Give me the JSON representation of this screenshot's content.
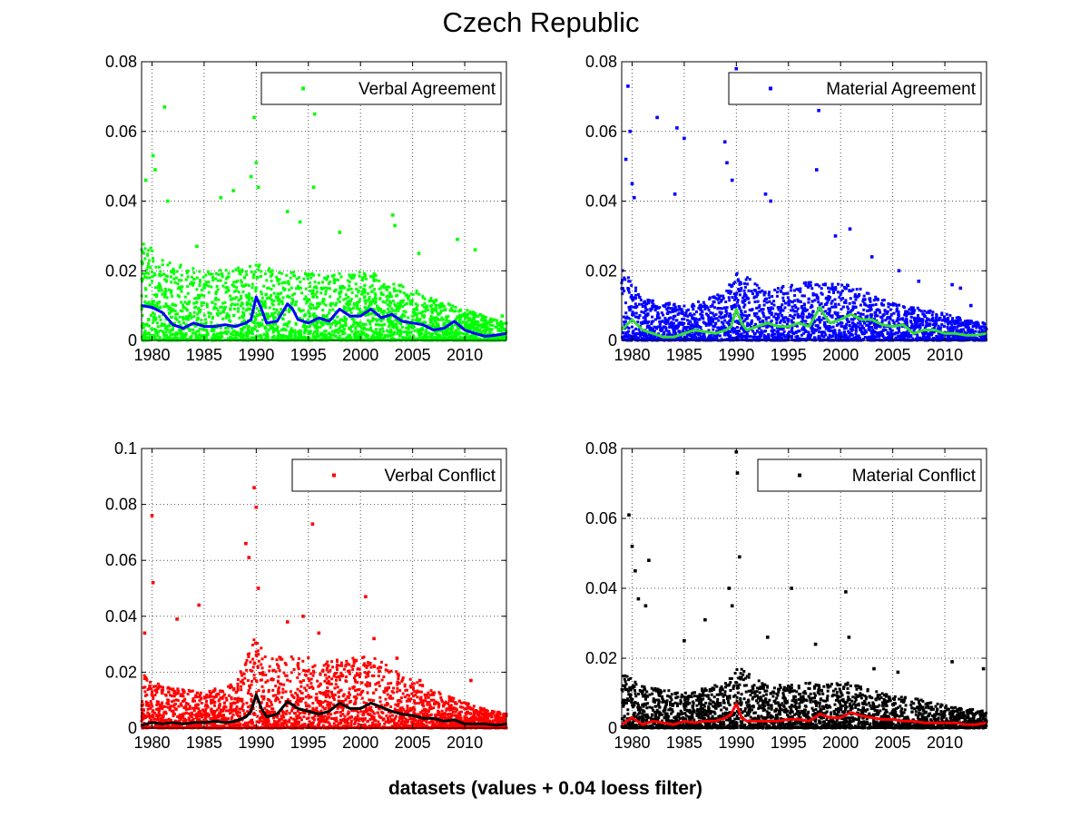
{
  "figure": {
    "title": "Czech Republic",
    "xlabel": "datasets (values + 0.04 loess filter)"
  },
  "chart_data": [
    {
      "type": "scatter",
      "legend": "Verbal Agreement",
      "legend_position": "top-right",
      "grid": true,
      "xlim": [
        1979,
        2014
      ],
      "ylim": [
        0,
        0.08
      ],
      "xticks": [
        1980,
        1985,
        1990,
        1995,
        2000,
        2005,
        2010
      ],
      "yticks": [
        "0",
        "0.02",
        "0.04",
        "0.06",
        "0.08"
      ],
      "point_color": "#00ff00",
      "line_color": "#0000ff",
      "scatter": {
        "envelope": [
          [
            1979,
            0.03
          ],
          [
            1981,
            0.023
          ],
          [
            1985,
            0.02
          ],
          [
            1989,
            0.021
          ],
          [
            1990,
            0.022
          ],
          [
            1993,
            0.02
          ],
          [
            1997,
            0.019
          ],
          [
            2001,
            0.02
          ],
          [
            2004,
            0.016
          ],
          [
            2008,
            0.011
          ],
          [
            2011,
            0.008
          ],
          [
            2014,
            0.005
          ]
        ],
        "outliers": [
          [
            1979.4,
            0.046
          ],
          [
            1980.1,
            0.053
          ],
          [
            1980.3,
            0.049
          ],
          [
            1981.2,
            0.067
          ],
          [
            1981.5,
            0.04
          ],
          [
            1984.3,
            0.027
          ],
          [
            1986.6,
            0.041
          ],
          [
            1987.8,
            0.043
          ],
          [
            1989.5,
            0.047
          ],
          [
            1989.8,
            0.064
          ],
          [
            1990.0,
            0.051
          ],
          [
            1990.2,
            0.044
          ],
          [
            1993.0,
            0.037
          ],
          [
            1994.2,
            0.034
          ],
          [
            1995.6,
            0.065
          ],
          [
            1995.5,
            0.044
          ],
          [
            1998.0,
            0.031
          ],
          [
            2003.1,
            0.036
          ],
          [
            2003.3,
            0.033
          ],
          [
            2005.6,
            0.025
          ],
          [
            2009.3,
            0.029
          ],
          [
            2011.0,
            0.026
          ],
          [
            2013.6,
            0.007
          ]
        ]
      },
      "trend": {
        "x": [
          1979,
          1980,
          1981,
          1982,
          1983,
          1984,
          1985,
          1986,
          1987,
          1988,
          1989,
          1989.5,
          1990,
          1990.5,
          1991,
          1992,
          1993,
          1993.5,
          1994,
          1995,
          1996,
          1997,
          1998,
          1999,
          2000,
          2001,
          2002,
          2003,
          2004,
          2005,
          2006,
          2007,
          2008,
          2009,
          2010,
          2011,
          2012,
          2013,
          2014
        ],
        "y": [
          0.01,
          0.0095,
          0.008,
          0.0045,
          0.0035,
          0.005,
          0.004,
          0.004,
          0.0045,
          0.004,
          0.005,
          0.006,
          0.0125,
          0.009,
          0.005,
          0.0055,
          0.0105,
          0.009,
          0.006,
          0.005,
          0.0065,
          0.0055,
          0.009,
          0.007,
          0.007,
          0.009,
          0.0065,
          0.0075,
          0.0055,
          0.005,
          0.0045,
          0.003,
          0.0035,
          0.0055,
          0.003,
          0.002,
          0.0012,
          0.0015,
          0.002
        ]
      }
    },
    {
      "type": "scatter",
      "legend": "Material Agreement",
      "legend_position": "top-right",
      "grid": true,
      "xlim": [
        1979,
        2014
      ],
      "ylim": [
        0,
        0.08
      ],
      "xticks": [
        1980,
        1985,
        1990,
        1995,
        2000,
        2005,
        2010
      ],
      "yticks": [
        "0",
        "0.02",
        "0.04",
        "0.06",
        "0.08"
      ],
      "point_color": "#0000ff",
      "line_color": "#33dd33",
      "scatter": {
        "envelope": [
          [
            1979,
            0.022
          ],
          [
            1981,
            0.012
          ],
          [
            1985,
            0.01
          ],
          [
            1989,
            0.014
          ],
          [
            1990,
            0.02
          ],
          [
            1993,
            0.015
          ],
          [
            1997,
            0.017
          ],
          [
            2001,
            0.016
          ],
          [
            2004,
            0.012
          ],
          [
            2008,
            0.009
          ],
          [
            2011,
            0.007
          ],
          [
            2014,
            0.005
          ]
        ],
        "outliers": [
          [
            1979.6,
            0.073
          ],
          [
            1979.8,
            0.06
          ],
          [
            1979.4,
            0.052
          ],
          [
            1980.0,
            0.045
          ],
          [
            1980.2,
            0.041
          ],
          [
            1982.4,
            0.064
          ],
          [
            1984.3,
            0.061
          ],
          [
            1985.0,
            0.058
          ],
          [
            1984.1,
            0.042
          ],
          [
            1988.9,
            0.057
          ],
          [
            1989.1,
            0.051
          ],
          [
            1990.0,
            0.078
          ],
          [
            1989.6,
            0.046
          ],
          [
            1992.8,
            0.042
          ],
          [
            1993.3,
            0.04
          ],
          [
            1997.9,
            0.066
          ],
          [
            1997.7,
            0.049
          ],
          [
            2000.9,
            0.032
          ],
          [
            1999.5,
            0.03
          ],
          [
            2003.0,
            0.024
          ],
          [
            2005.6,
            0.02
          ],
          [
            2007.5,
            0.017
          ],
          [
            2010.7,
            0.016
          ],
          [
            2011.5,
            0.015
          ],
          [
            2012.5,
            0.01
          ]
        ]
      },
      "trend": {
        "x": [
          1979,
          1980,
          1981,
          1982,
          1983,
          1984,
          1985,
          1986,
          1987,
          1988,
          1989,
          1989.5,
          1990,
          1990.5,
          1991,
          1992,
          1993,
          1994,
          1995,
          1996,
          1997,
          1998,
          1998.5,
          1999,
          2000,
          2001,
          2002,
          2003,
          2004,
          2005,
          2006,
          2007,
          2008,
          2009,
          2010,
          2011,
          2012,
          2013,
          2014
        ],
        "y": [
          0.003,
          0.006,
          0.003,
          0.002,
          0.001,
          0.001,
          0.002,
          0.003,
          0.0025,
          0.002,
          0.003,
          0.004,
          0.009,
          0.005,
          0.003,
          0.004,
          0.005,
          0.004,
          0.004,
          0.005,
          0.004,
          0.0095,
          0.007,
          0.005,
          0.006,
          0.0075,
          0.006,
          0.006,
          0.0045,
          0.004,
          0.0045,
          0.002,
          0.003,
          0.003,
          0.002,
          0.002,
          0.0015,
          0.0015,
          0.002
        ]
      }
    },
    {
      "type": "scatter",
      "legend": "Verbal Conflict",
      "legend_position": "top-right",
      "grid": true,
      "xlim": [
        1979,
        2014
      ],
      "ylim": [
        0,
        0.1
      ],
      "xticks": [
        1980,
        1985,
        1990,
        1995,
        2000,
        2005,
        2010
      ],
      "yticks": [
        "0",
        "0.02",
        "0.04",
        "0.06",
        "0.08",
        "0.1"
      ],
      "point_color": "#ff0000",
      "line_color": "#000000",
      "scatter": {
        "envelope": [
          [
            1979,
            0.02
          ],
          [
            1981,
            0.015
          ],
          [
            1985,
            0.013
          ],
          [
            1988,
            0.016
          ],
          [
            1989.5,
            0.03
          ],
          [
            1990,
            0.035
          ],
          [
            1991,
            0.024
          ],
          [
            1993,
            0.027
          ],
          [
            1997,
            0.024
          ],
          [
            2001,
            0.026
          ],
          [
            2004,
            0.019
          ],
          [
            2008,
            0.012
          ],
          [
            2011,
            0.008
          ],
          [
            2014,
            0.005
          ]
        ],
        "outliers": [
          [
            1979.3,
            0.034
          ],
          [
            1980.0,
            0.076
          ],
          [
            1980.1,
            0.052
          ],
          [
            1982.4,
            0.039
          ],
          [
            1984.5,
            0.044
          ],
          [
            1989.0,
            0.066
          ],
          [
            1989.3,
            0.061
          ],
          [
            1989.8,
            0.086
          ],
          [
            1990.0,
            0.079
          ],
          [
            1990.2,
            0.05
          ],
          [
            1993.0,
            0.038
          ],
          [
            1994.5,
            0.04
          ],
          [
            1995.4,
            0.073
          ],
          [
            1996.0,
            0.034
          ],
          [
            2000.5,
            0.047
          ],
          [
            2001.3,
            0.032
          ],
          [
            2003.5,
            0.025
          ],
          [
            2005.7,
            0.017
          ],
          [
            2010.6,
            0.017
          ],
          [
            2013.8,
            0.005
          ]
        ]
      },
      "trend": {
        "x": [
          1979,
          1980,
          1981,
          1982,
          1983,
          1984,
          1985,
          1986,
          1987,
          1988,
          1989,
          1989.5,
          1990,
          1990.5,
          1991,
          1992,
          1993,
          1994,
          1995,
          1996,
          1997,
          1998,
          1999,
          2000,
          2001,
          2002,
          2003,
          2004,
          2005,
          2006,
          2007,
          2008,
          2009,
          2010,
          2011,
          2012,
          2013,
          2014
        ],
        "y": [
          0.001,
          0.002,
          0.0015,
          0.002,
          0.0015,
          0.002,
          0.002,
          0.0025,
          0.002,
          0.0025,
          0.004,
          0.006,
          0.012,
          0.007,
          0.004,
          0.005,
          0.0095,
          0.007,
          0.006,
          0.005,
          0.006,
          0.009,
          0.007,
          0.007,
          0.009,
          0.0075,
          0.006,
          0.005,
          0.0045,
          0.0035,
          0.0035,
          0.0025,
          0.003,
          0.0015,
          0.0015,
          0.0015,
          0.001,
          0.0015
        ]
      }
    },
    {
      "type": "scatter",
      "legend": "Material Conflict",
      "legend_position": "top-right",
      "grid": true,
      "xlim": [
        1979,
        2014
      ],
      "ylim": [
        0,
        0.08
      ],
      "xticks": [
        1980,
        1985,
        1990,
        1995,
        2000,
        2005,
        2010
      ],
      "yticks": [
        "0",
        "0.02",
        "0.04",
        "0.06",
        "0.08"
      ],
      "point_color": "#000000",
      "line_color": "#ff0000",
      "scatter": {
        "envelope": [
          [
            1979,
            0.016
          ],
          [
            1981,
            0.012
          ],
          [
            1985,
            0.01
          ],
          [
            1989,
            0.013
          ],
          [
            1990,
            0.018
          ],
          [
            1993,
            0.012
          ],
          [
            1997,
            0.013
          ],
          [
            2001,
            0.013
          ],
          [
            2004,
            0.01
          ],
          [
            2008,
            0.008
          ],
          [
            2011,
            0.006
          ],
          [
            2014,
            0.005
          ]
        ],
        "outliers": [
          [
            1979.7,
            0.061
          ],
          [
            1980.0,
            0.052
          ],
          [
            1980.3,
            0.045
          ],
          [
            1980.6,
            0.037
          ],
          [
            1981.3,
            0.035
          ],
          [
            1981.6,
            0.048
          ],
          [
            1985.0,
            0.025
          ],
          [
            1987.0,
            0.031
          ],
          [
            1989.3,
            0.04
          ],
          [
            1989.6,
            0.035
          ],
          [
            1990.0,
            0.079
          ],
          [
            1990.1,
            0.073
          ],
          [
            1990.3,
            0.049
          ],
          [
            1993.0,
            0.026
          ],
          [
            1995.3,
            0.04
          ],
          [
            1997.6,
            0.024
          ],
          [
            2000.5,
            0.039
          ],
          [
            2000.8,
            0.026
          ],
          [
            2003.2,
            0.017
          ],
          [
            2005.5,
            0.016
          ],
          [
            2010.7,
            0.019
          ],
          [
            2013.7,
            0.017
          ]
        ]
      },
      "trend": {
        "x": [
          1979,
          1980,
          1981,
          1982,
          1983,
          1984,
          1985,
          1986,
          1987,
          1988,
          1989,
          1989.5,
          1990,
          1990.5,
          1991,
          1992,
          1993,
          1994,
          1995,
          1996,
          1997,
          1998,
          1999,
          2000,
          2001,
          2002,
          2003,
          2004,
          2005,
          2006,
          2007,
          2008,
          2009,
          2010,
          2011,
          2012,
          2013,
          2014
        ],
        "y": [
          0.001,
          0.003,
          0.001,
          0.002,
          0.0015,
          0.001,
          0.002,
          0.0015,
          0.002,
          0.002,
          0.003,
          0.004,
          0.007,
          0.003,
          0.002,
          0.002,
          0.002,
          0.002,
          0.0025,
          0.0025,
          0.002,
          0.004,
          0.003,
          0.003,
          0.0045,
          0.0035,
          0.003,
          0.0025,
          0.0025,
          0.002,
          0.002,
          0.0015,
          0.0015,
          0.0015,
          0.0015,
          0.001,
          0.001,
          0.0015
        ]
      }
    }
  ]
}
